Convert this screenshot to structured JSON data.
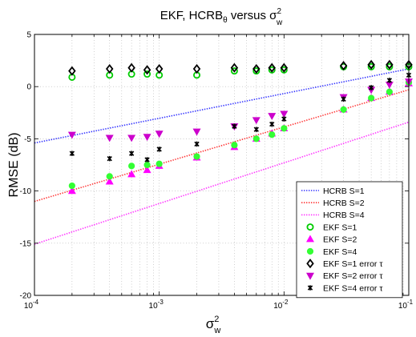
{
  "chart_data": {
    "type": "scatter",
    "title": {
      "main": "EKF, HCRB",
      "sub": "θ",
      "mid": " versus σ",
      "sup": "2",
      "sub2": "w"
    },
    "xlabel": {
      "base": "σ",
      "sup": "2",
      "sub": "w"
    },
    "ylabel": "RMSE (dB)",
    "x_scale": "log",
    "xlim": [
      0.0001,
      0.1
    ],
    "ylim": [
      -20,
      5
    ],
    "x_ticks": [
      {
        "value": 0.0001,
        "base": "10",
        "exp": "-4"
      },
      {
        "value": 0.001,
        "base": "10",
        "exp": "-3"
      },
      {
        "value": 0.01,
        "base": "10",
        "exp": "-2"
      },
      {
        "value": 0.1,
        "base": "10",
        "exp": "-1"
      }
    ],
    "y_ticks": [
      {
        "value": 5,
        "label": "5"
      },
      {
        "value": 0,
        "label": "0"
      },
      {
        "value": -5,
        "label": "-5"
      },
      {
        "value": -10,
        "label": "-10"
      },
      {
        "value": -15,
        "label": "-15"
      },
      {
        "value": -20,
        "label": "-20"
      }
    ],
    "grid": true,
    "legend_position": "bottom-right",
    "series": [
      {
        "name": "HCRB S=1",
        "style": "dotted-line",
        "color": "#3333ff",
        "x": [
          0.0001,
          0.1
        ],
        "y": [
          -5.4,
          1.7
        ]
      },
      {
        "name": "HCRB S=2",
        "style": "dotted-line",
        "color": "#ff3333",
        "x": [
          0.0001,
          0.1
        ],
        "y": [
          -11.0,
          -0.3
        ]
      },
      {
        "name": "HCRB S=4",
        "style": "dotted-line",
        "color": "#ff33ff",
        "x": [
          0.0001,
          0.1
        ],
        "y": [
          -15.1,
          -3.4
        ]
      },
      {
        "name": "EKF S=1",
        "marker": "circle",
        "color": "#00cc00",
        "x": [
          0.0002,
          0.0004,
          0.0006,
          0.0008,
          0.001,
          0.002,
          0.004,
          0.006,
          0.008,
          0.01,
          0.03,
          0.05,
          0.07,
          0.1
        ],
        "y": [
          0.9,
          1.1,
          1.2,
          1.2,
          1.1,
          1.1,
          1.5,
          1.5,
          1.6,
          1.6,
          1.9,
          1.9,
          1.9,
          1.9
        ]
      },
      {
        "name": "EKF S=2",
        "marker": "triangle-up",
        "color": "#ff00ff",
        "x": [
          0.0002,
          0.0004,
          0.0006,
          0.0008,
          0.001,
          0.002,
          0.004,
          0.006,
          0.008,
          0.01,
          0.03,
          0.05,
          0.07,
          0.1
        ],
        "y": [
          -10.0,
          -9.1,
          -8.4,
          -8.0,
          -7.6,
          -6.8,
          -5.8,
          -5.0,
          -4.5,
          -4.0,
          -2.2,
          -1.1,
          -0.5,
          0.3
        ]
      },
      {
        "name": "EKF S=4",
        "marker": "circle-filled",
        "color": "#33ff33",
        "x": [
          0.0002,
          0.0004,
          0.0006,
          0.0008,
          0.001,
          0.002,
          0.004,
          0.006,
          0.008,
          0.01,
          0.03,
          0.05,
          0.07,
          0.1
        ],
        "y": [
          -9.5,
          -8.6,
          -7.6,
          -7.5,
          -7.4,
          -6.7,
          -5.6,
          -5.0,
          -4.6,
          -4.0,
          -2.2,
          -1.1,
          -0.5,
          0.4
        ]
      },
      {
        "name": "EKF S=1 error τ",
        "marker": "diamond",
        "color": "#000000",
        "x": [
          0.0002,
          0.0004,
          0.0006,
          0.0008,
          0.001,
          0.002,
          0.004,
          0.006,
          0.008,
          0.01,
          0.03,
          0.05,
          0.07,
          0.1
        ],
        "y": [
          1.5,
          1.7,
          1.8,
          1.6,
          1.7,
          1.7,
          1.8,
          1.7,
          1.8,
          1.8,
          2.0,
          2.1,
          2.1,
          2.1
        ]
      },
      {
        "name": "EKF S=2 error τ",
        "marker": "triangle-down",
        "color": "#cc00cc",
        "x": [
          0.0002,
          0.0004,
          0.0006,
          0.0008,
          0.001,
          0.002,
          0.004,
          0.006,
          0.008,
          0.01,
          0.03,
          0.05,
          0.07,
          0.1
        ],
        "y": [
          -4.6,
          -4.9,
          -4.9,
          -4.8,
          -4.5,
          -4.3,
          -3.8,
          -3.2,
          -2.8,
          -2.6,
          -1.0,
          -0.3,
          0.2,
          0.5
        ]
      },
      {
        "name": "EKF S=4 error τ",
        "marker": "x",
        "color": "#000000",
        "x": [
          0.0002,
          0.0004,
          0.0006,
          0.0008,
          0.001,
          0.002,
          0.004,
          0.006,
          0.008,
          0.01,
          0.03,
          0.05,
          0.07,
          0.1
        ],
        "y": [
          -6.4,
          -6.9,
          -6.4,
          -7.0,
          -6.0,
          -5.5,
          -3.8,
          -4.1,
          -3.6,
          -3.1,
          -1.2,
          -0.1,
          0.6,
          1.1
        ]
      }
    ]
  }
}
